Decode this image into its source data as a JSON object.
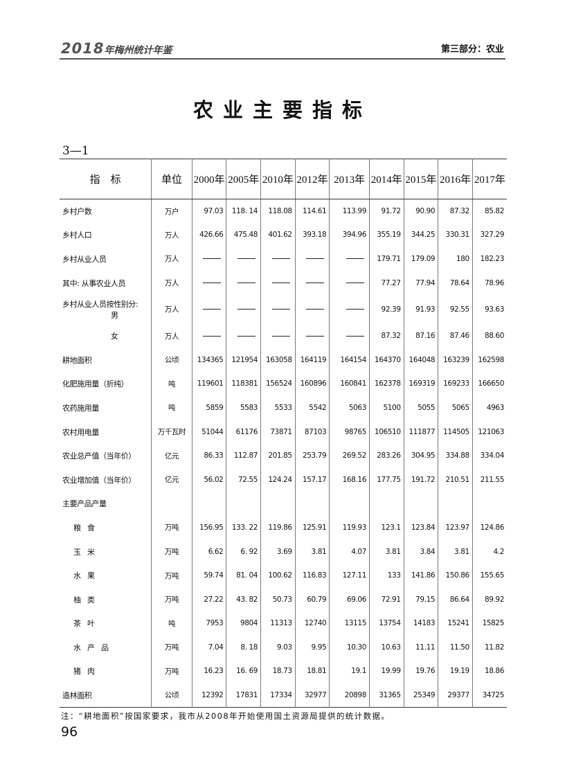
{
  "header": {
    "yearbook_year": "2018",
    "yearbook_title": "年梅州统计年鉴",
    "section": "第三部分：农业"
  },
  "title": "农业主要指标",
  "table_number": "3—1",
  "table": {
    "columns": [
      "指　标",
      "单位",
      "2000年",
      "2005年",
      "2010年",
      "2012年",
      "2013年",
      "2014年",
      "2015年",
      "2016年",
      "2017年"
    ],
    "rows": [
      {
        "label": "乡村户数",
        "unit": "万户",
        "values": [
          "97.03",
          "118. 14",
          "118.08",
          "114.61",
          "113.99",
          "91.72",
          "90.90",
          "87.32",
          "85.82"
        ]
      },
      {
        "label": "乡村人口",
        "unit": "万人",
        "values": [
          "426.66",
          "475.48",
          "401.62",
          "393.18",
          "394.96",
          "355.19",
          "344.25",
          "330.31",
          "327.29"
        ]
      },
      {
        "label": "乡村从业人员",
        "unit": "万人",
        "values": [
          "—",
          "—",
          "—",
          "—",
          "—",
          "179.71",
          "179.09",
          "180",
          "182.23"
        ]
      },
      {
        "label": "其中: 从事农业人员",
        "unit": "万人",
        "values": [
          "—",
          "—",
          "—",
          "—",
          "—",
          "77.27",
          "77.94",
          "78.64",
          "78.96"
        ]
      },
      {
        "label": "乡村从业人员按性别分:",
        "label2": "男",
        "unit": "万人",
        "values": [
          "—",
          "—",
          "—",
          "—",
          "—",
          "92.39",
          "91.93",
          "92.55",
          "93.63"
        ]
      },
      {
        "label": "女",
        "unit": "万人",
        "values": [
          "—",
          "—",
          "—",
          "—",
          "—",
          "87.32",
          "87.16",
          "87.46",
          "88.60"
        ]
      },
      {
        "label": "耕地面积",
        "unit": "公顷",
        "values": [
          "134365",
          "121954",
          "163058",
          "164119",
          "164154",
          "164370",
          "164048",
          "163239",
          "162598"
        ]
      },
      {
        "label": "化肥施用量（折纯）",
        "unit": "吨",
        "values": [
          "119601",
          "118381",
          "156524",
          "160896",
          "160841",
          "162378",
          "169319",
          "169233",
          "166650"
        ]
      },
      {
        "label": "农药施用量",
        "unit": "吨",
        "values": [
          "5859",
          "5583",
          "5533",
          "5542",
          "5063",
          "5100",
          "5055",
          "5065",
          "4963"
        ]
      },
      {
        "label": "农村用电量",
        "unit": "万千瓦时",
        "values": [
          "51044",
          "61176",
          "73871",
          "87103",
          "98765",
          "106510",
          "111877",
          "114505",
          "121063"
        ]
      },
      {
        "label": "农业总产值（当年价）",
        "unit": "亿元",
        "values": [
          "86.33",
          "112.87",
          "201.85",
          "253.79",
          "269.52",
          "283.26",
          "304.95",
          "334.88",
          "334.04"
        ]
      },
      {
        "label": "农业增加值（当年价）",
        "unit": "亿元",
        "values": [
          "56.02",
          "72.55",
          "124.24",
          "157.17",
          "168.16",
          "177.75",
          "191.72",
          "210.51",
          "211.55"
        ]
      },
      {
        "label": "主要产品产量",
        "unit": "",
        "values": [
          "",
          "",
          "",
          "",
          "",
          "",
          "",
          "",
          ""
        ]
      },
      {
        "label": "粮食",
        "unit": "万吨",
        "values": [
          "156.95",
          "133. 22",
          "119.86",
          "125.91",
          "119.93",
          "123.1",
          "123.84",
          "123.97",
          "124.86"
        ]
      },
      {
        "label": "玉米",
        "unit": "万吨",
        "values": [
          "6.62",
          "6. 92",
          "3.69",
          "3.81",
          "4.07",
          "3.81",
          "3.84",
          "3.81",
          "4.2"
        ]
      },
      {
        "label": "水果",
        "unit": "万吨",
        "values": [
          "59.74",
          "81. 04",
          "100.62",
          "116.83",
          "127.11",
          "133",
          "141.86",
          "150.86",
          "155.65"
        ]
      },
      {
        "label": "柚类",
        "unit": "万吨",
        "values": [
          "27.22",
          "43. 82",
          "50.73",
          "60.79",
          "69.06",
          "72.91",
          "79.15",
          "86.64",
          "89.92"
        ]
      },
      {
        "label": "茶叶",
        "unit": "吨",
        "values": [
          "7953",
          "9804",
          "11313",
          "12740",
          "13115",
          "13754",
          "14183",
          "15241",
          "15825"
        ]
      },
      {
        "label": "水产品",
        "unit": "万吨",
        "values": [
          "7.04",
          "8. 18",
          "9.03",
          "9.95",
          "10.30",
          "10.63",
          "11.11",
          "11.50",
          "11.82"
        ]
      },
      {
        "label": "猪肉",
        "unit": "万吨",
        "values": [
          "16.23",
          "16. 69",
          "18.73",
          "18.81",
          "19.1",
          "19.99",
          "19.76",
          "19.19",
          "18.86"
        ]
      },
      {
        "label": "造林面积",
        "unit": "公顷",
        "values": [
          "12392",
          "17831",
          "17334",
          "32977",
          "20898",
          "31365",
          "25349",
          "29377",
          "34725"
        ]
      }
    ]
  },
  "note": "注：“耕地面积”按国家要求，我市从2008年开始使用国土资源局提供的统计数据。",
  "page_number": "96"
}
